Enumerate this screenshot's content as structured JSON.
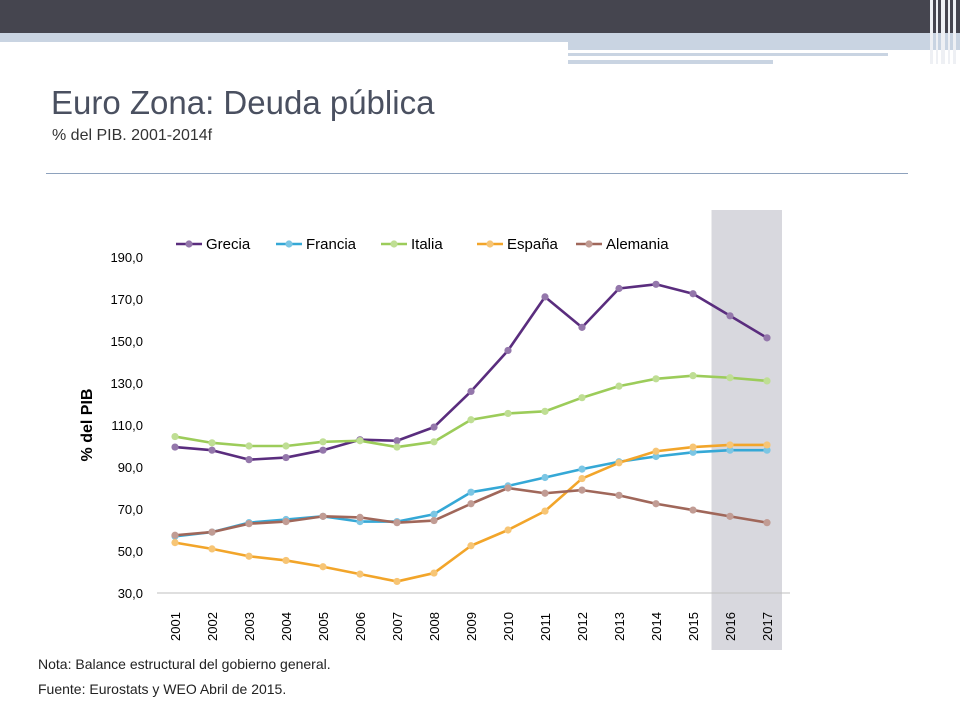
{
  "title": "Euro Zona: Deuda pública",
  "subtitle": "% del PIB. 2001-2014f",
  "note": "Nota: Balance estructural del gobierno general.",
  "source": "Fuente: Eurostats y WEO Abril de 2015.",
  "chart_data": {
    "type": "line",
    "ylabel": "% del PIB",
    "ylim": [
      30,
      190
    ],
    "yticks": [
      "30,0",
      "50,0",
      "70,0",
      "90,0",
      "110,0",
      "130,0",
      "150,0",
      "170,0",
      "190,0"
    ],
    "categories": [
      "2001",
      "2002",
      "2003",
      "2004",
      "2005",
      "2006",
      "2007",
      "2008",
      "2009",
      "2010",
      "2011",
      "2012",
      "2013",
      "2014",
      "2015",
      "2016",
      "2017"
    ],
    "shaded_from": "2016",
    "legend_position": "top",
    "series": [
      {
        "name": "Grecia",
        "color": "#5a2d7e",
        "values": [
          99.5,
          98,
          93.5,
          94.5,
          98,
          103,
          102.5,
          109,
          126,
          145.5,
          171,
          156.5,
          175,
          177,
          172.5,
          162,
          151.5
        ]
      },
      {
        "name": "Francia",
        "color": "#35a8d6",
        "values": [
          57,
          59,
          63.5,
          65,
          66.5,
          64,
          64,
          67.5,
          78,
          81,
          85,
          89,
          92.5,
          95,
          97,
          98,
          98
        ]
      },
      {
        "name": "Italia",
        "color": "#9ccc5a",
        "values": [
          104.5,
          101.5,
          100,
          100,
          102,
          102.5,
          99.5,
          102,
          112.5,
          115.5,
          116.5,
          123,
          128.5,
          132,
          133.5,
          132.5,
          131
        ]
      },
      {
        "name": "España",
        "color": "#f2a52a",
        "values": [
          54,
          51,
          47.5,
          45.5,
          42.5,
          39,
          35.5,
          39.5,
          52.5,
          60,
          69,
          84.5,
          92,
          97.5,
          99.5,
          100.5,
          100.5
        ]
      },
      {
        "name": "Alemania",
        "color": "#a0675a",
        "values": [
          57.5,
          59,
          63,
          64,
          66.5,
          66,
          63.5,
          64.5,
          72.5,
          80,
          77.5,
          79,
          76.5,
          72.5,
          69.5,
          66.5,
          63.5
        ]
      }
    ]
  }
}
